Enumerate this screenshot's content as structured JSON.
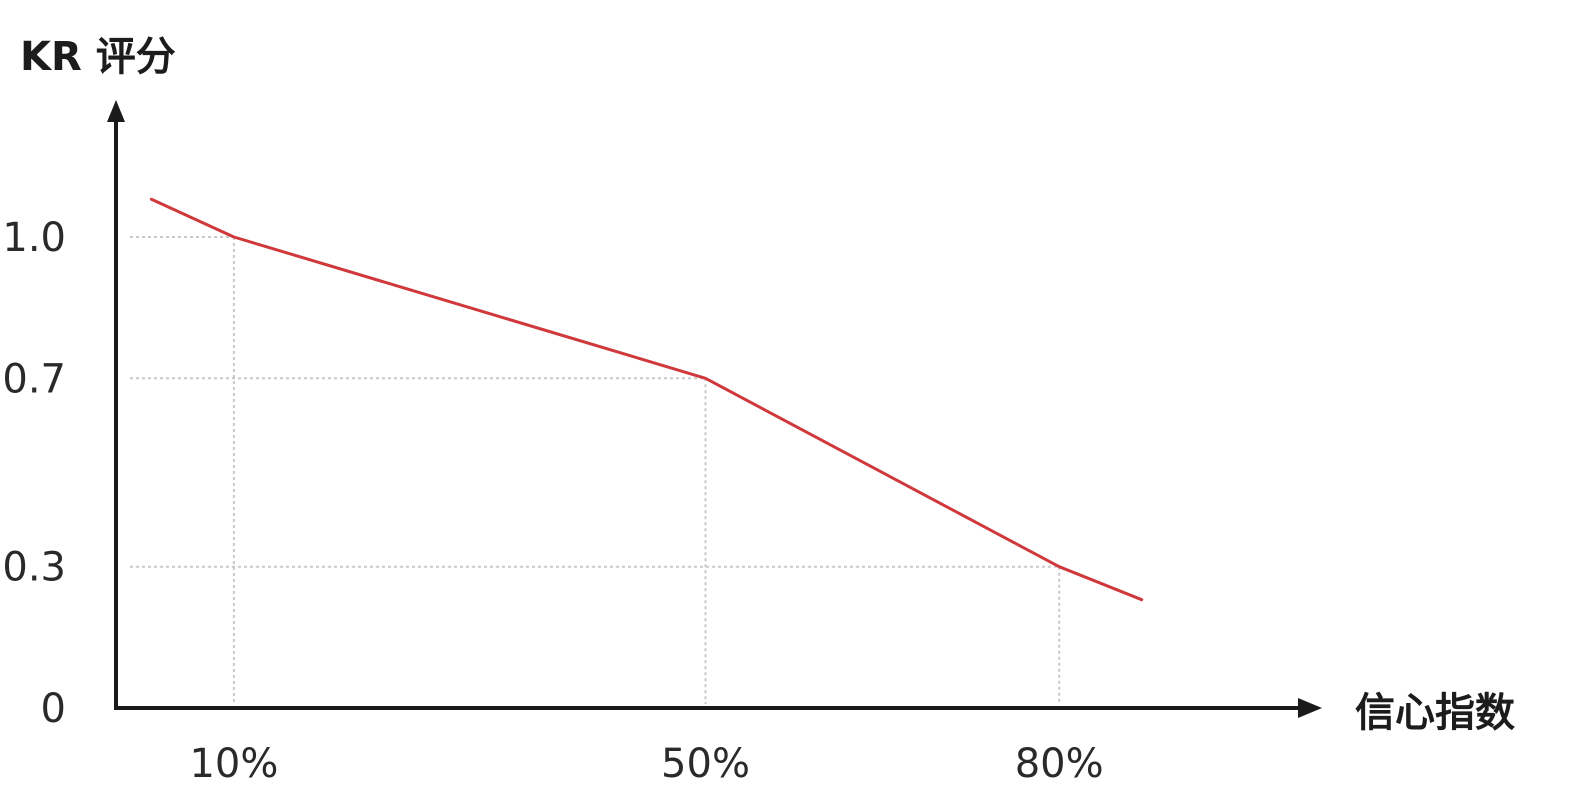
{
  "chart_data": {
    "type": "line",
    "title": "",
    "ylabel": "KR 评分",
    "xlabel": "信心指数",
    "x_ticks": [
      {
        "value": 10,
        "label": "10%"
      },
      {
        "value": 50,
        "label": "50%"
      },
      {
        "value": 80,
        "label": "80%"
      }
    ],
    "y_ticks": [
      {
        "value": 0,
        "label": "0"
      },
      {
        "value": 0.3,
        "label": "0.3"
      },
      {
        "value": 0.7,
        "label": "0.7"
      },
      {
        "value": 1.0,
        "label": "1.0"
      }
    ],
    "series": [
      {
        "x": [
          3,
          10,
          50,
          80,
          87
        ],
        "y": [
          1.08,
          1.0,
          0.7,
          0.3,
          0.23
        ],
        "color": "#d0393c"
      }
    ],
    "guide_points": [
      {
        "x": 10,
        "y": 1.0
      },
      {
        "x": 50,
        "y": 0.7
      },
      {
        "x": 80,
        "y": 0.3
      }
    ],
    "xlim": [
      0,
      94
    ],
    "ylim": [
      0,
      1.38
    ],
    "grid": false
  },
  "colors": {
    "axis": "#1a1a1a",
    "guide": "#c8c8c8",
    "line": "#d0393c"
  }
}
